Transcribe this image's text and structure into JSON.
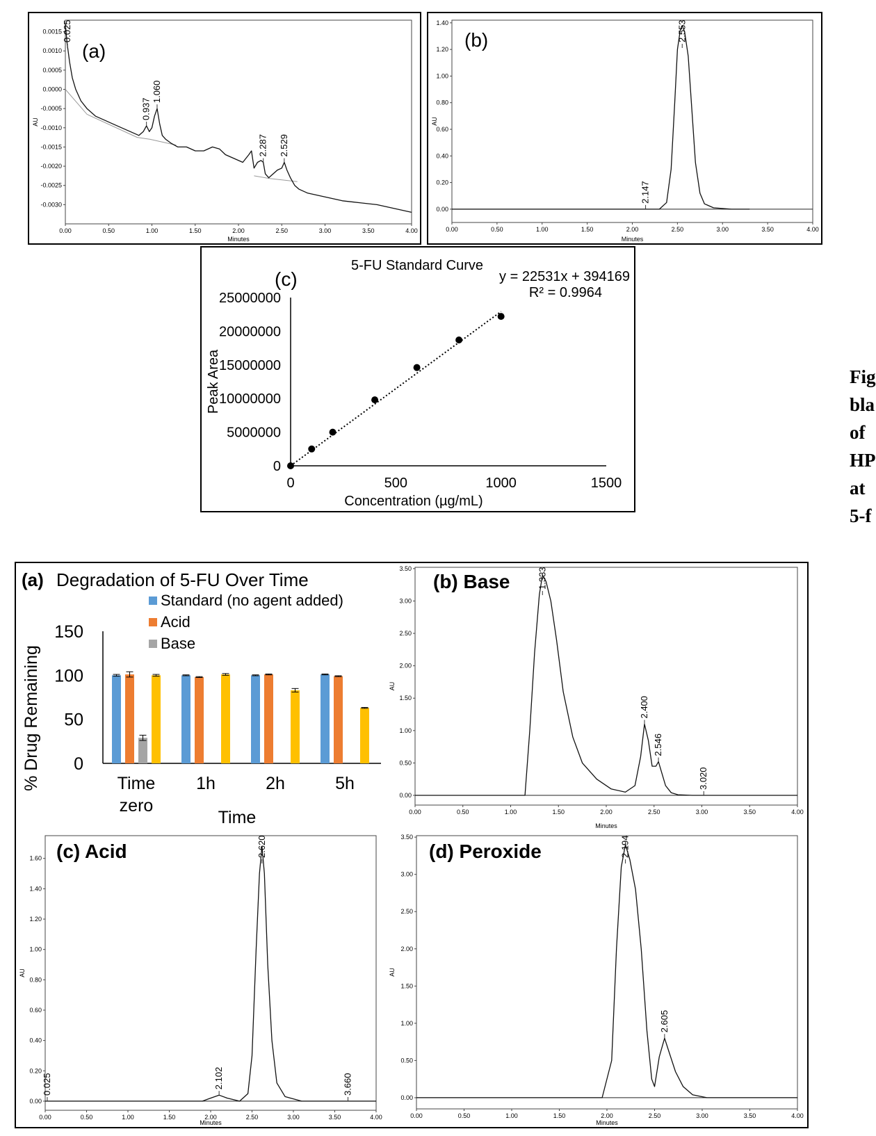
{
  "side_text": [
    "Fig",
    "bla",
    "of",
    "HP",
    "at",
    "5-f"
  ],
  "chart_data": [
    {
      "id": "top_a",
      "type": "line",
      "label": "(a)",
      "ylabel": "AU",
      "xlabel": "Minutes",
      "xlim": [
        0,
        4.0
      ],
      "ylim": [
        -0.0035,
        0.0018
      ],
      "x_ticks": [
        "0.00",
        "0.50",
        "1.00",
        "1.50",
        "2.00",
        "2.50",
        "3.00",
        "3.50",
        "4.00"
      ],
      "y_ticks": [
        {
          "v": 0.0015,
          "t": "0.0015"
        },
        {
          "v": 0.001,
          "t": "0.0010"
        },
        {
          "v": 0.0005,
          "t": "0.0005"
        },
        {
          "v": 0,
          "t": "0.0000"
        },
        {
          "v": -0.0005,
          "t": "-0.0005"
        },
        {
          "v": -0.001,
          "t": "-0.0010"
        },
        {
          "v": -0.0015,
          "t": "-0.0015"
        },
        {
          "v": -0.002,
          "t": "-0.0020"
        },
        {
          "v": -0.0025,
          "t": "-0.0025"
        },
        {
          "v": -0.003,
          "t": "-0.0030"
        }
      ],
      "series": [
        {
          "x": [
            0.0,
            0.02,
            0.05,
            0.08,
            0.12,
            0.18,
            0.25,
            0.35,
            0.45,
            0.55,
            0.65,
            0.75,
            0.85,
            0.9,
            0.937,
            0.97,
            1.0,
            1.03,
            1.06,
            1.09,
            1.12,
            1.16,
            1.22,
            1.3,
            1.4,
            1.5,
            1.6,
            1.7,
            1.78,
            1.85,
            1.95,
            2.05,
            2.12,
            2.15,
            2.18,
            2.22,
            2.26,
            2.287,
            2.31,
            2.35,
            2.4,
            2.45,
            2.5,
            2.529,
            2.56,
            2.6,
            2.65,
            2.7,
            2.8,
            3.0,
            3.2,
            3.4,
            3.6,
            3.8,
            4.0
          ],
          "y": [
            0.0017,
            0.0012,
            0.0007,
            0.0003,
            0.0,
            -0.0003,
            -0.0005,
            -0.0007,
            -0.0008,
            -0.0009,
            -0.001,
            -0.0011,
            -0.0012,
            -0.0011,
            -0.00095,
            -0.0011,
            -0.001,
            -0.0007,
            -0.0005,
            -0.0009,
            -0.0012,
            -0.0013,
            -0.0014,
            -0.0015,
            -0.0015,
            -0.0016,
            -0.0016,
            -0.0015,
            -0.00155,
            -0.0017,
            -0.0018,
            -0.0019,
            -0.0017,
            -0.0016,
            -0.00205,
            -0.0019,
            -0.00185,
            -0.0019,
            -0.0022,
            -0.0023,
            -0.0022,
            -0.0021,
            -0.00205,
            -0.0019,
            -0.0021,
            -0.0023,
            -0.0025,
            -0.0026,
            -0.0027,
            -0.0028,
            -0.0029,
            -0.00295,
            -0.003,
            -0.0031,
            -0.0032
          ]
        }
      ],
      "baselines": [
        {
          "x": [
            0.0,
            0.25,
            0.83,
            0.98,
            1.28
          ],
          "y": [
            0.0,
            -0.00065,
            -0.00125,
            -0.0013,
            -0.00145
          ]
        },
        {
          "x": [
            2.18,
            2.36,
            2.68
          ],
          "y": [
            -0.00225,
            -0.00232,
            -0.0024
          ]
        }
      ],
      "peaks": [
        {
          "x": 0.025,
          "label": "0.025"
        },
        {
          "x": 0.937,
          "label": "0.937"
        },
        {
          "x": 1.06,
          "label": "1.060"
        },
        {
          "x": 2.287,
          "label": "2.287"
        },
        {
          "x": 2.529,
          "label": "2.529"
        }
      ]
    },
    {
      "id": "top_b",
      "type": "line",
      "label": "(b)",
      "ylabel": "AU",
      "xlabel": "Minutes",
      "xlim": [
        0,
        4.0
      ],
      "ylim": [
        -0.1,
        1.42
      ],
      "x_ticks": [
        "0.00",
        "0.50",
        "1.00",
        "1.50",
        "2.00",
        "2.50",
        "3.00",
        "3.50",
        "4.00"
      ],
      "y_ticks": [
        {
          "v": 1.4,
          "t": "1.40"
        },
        {
          "v": 1.2,
          "t": "1.20"
        },
        {
          "v": 1.0,
          "t": "1.00"
        },
        {
          "v": 0.8,
          "t": "0.80"
        },
        {
          "v": 0.6,
          "t": "0.60"
        },
        {
          "v": 0.4,
          "t": "0.40"
        },
        {
          "v": 0.2,
          "t": "0.20"
        },
        {
          "v": 0,
          "t": "0.00"
        }
      ],
      "series": [
        {
          "x": [
            0.0,
            2.0,
            2.147,
            2.3,
            2.38,
            2.43,
            2.47,
            2.5,
            2.53,
            2.553,
            2.58,
            2.62,
            2.66,
            2.7,
            2.75,
            2.8,
            2.9,
            3.1,
            3.3
          ],
          "y": [
            0.0,
            0.0,
            0.0,
            0.0,
            0.05,
            0.3,
            0.8,
            1.2,
            1.34,
            1.38,
            1.33,
            1.15,
            0.75,
            0.35,
            0.12,
            0.04,
            0.01,
            0.0,
            0.0
          ]
        }
      ],
      "peaks": [
        {
          "x": 2.147,
          "label": "2.147"
        },
        {
          "x": 2.553,
          "label": "2.553"
        }
      ]
    },
    {
      "id": "top_c",
      "type": "scatter",
      "label": "(c)",
      "title": "5-FU Standard Curve",
      "xlabel": "Concentration (µg/mL)",
      "ylabel": "Peak Area",
      "equation": "y = 22531x + 394169",
      "r2": "R² = 0.9964",
      "xlim": [
        0,
        1500
      ],
      "ylim": [
        0,
        25000000
      ],
      "x_ticks": [
        {
          "v": 0,
          "t": "0"
        },
        {
          "v": 500,
          "t": "500"
        },
        {
          "v": 1000,
          "t": "1000"
        },
        {
          "v": 1500,
          "t": "1500"
        }
      ],
      "y_ticks": [
        {
          "v": 0,
          "t": "0"
        },
        {
          "v": 5000000,
          "t": "5000000"
        },
        {
          "v": 10000000,
          "t": "10000000"
        },
        {
          "v": 15000000,
          "t": "15000000"
        },
        {
          "v": 20000000,
          "t": "20000000"
        },
        {
          "v": 25000000,
          "t": "25000000"
        }
      ],
      "x": [
        0,
        100,
        200,
        400,
        600,
        800,
        1000
      ],
      "y": [
        0,
        2500000,
        5000000,
        9800000,
        14600000,
        18700000,
        22200000
      ],
      "trendline": {
        "slope": 22531,
        "intercept": 394169
      }
    },
    {
      "id": "bottom_a",
      "type": "bar",
      "label": "(a)",
      "title": "Degradation of 5-FU Over Time",
      "xlabel": "Time",
      "ylabel": "% Drug Remaining",
      "ylim": [
        0,
        150
      ],
      "y_ticks": [
        {
          "v": 0,
          "t": "0"
        },
        {
          "v": 50,
          "t": "50"
        },
        {
          "v": 100,
          "t": "100"
        },
        {
          "v": 150,
          "t": "150"
        }
      ],
      "categories": [
        [
          "Time",
          "zero"
        ],
        [
          "1h"
        ],
        [
          "2h"
        ],
        [
          "5h"
        ]
      ],
      "legend": [
        {
          "name": "Standard (no agent added)",
          "color": "#5b9bd5"
        },
        {
          "name": "Acid",
          "color": "#ed7d31"
        },
        {
          "name": "Base",
          "color": "#a5a5a5"
        }
      ],
      "series": [
        {
          "name": "Standard (no agent added)",
          "color": "#5b9bd5",
          "values": [
            100,
            100,
            100,
            101
          ],
          "errors": [
            1,
            0.5,
            0.5,
            0.5
          ]
        },
        {
          "name": "Acid",
          "color": "#ed7d31",
          "values": [
            101,
            98,
            101,
            99
          ],
          "errors": [
            3,
            0.5,
            0.5,
            0.5
          ]
        },
        {
          "name": "Base",
          "color": "#a5a5a5",
          "values": [
            29,
            null,
            null,
            null
          ],
          "errors": [
            3,
            null,
            null,
            null
          ]
        },
        {
          "color": "#ffc000",
          "values": [
            100,
            101,
            83,
            63
          ],
          "errors": [
            1,
            1,
            2,
            0.5
          ]
        }
      ]
    },
    {
      "id": "bottom_b",
      "type": "line",
      "label": "(b) Base",
      "ylabel": "AU",
      "xlabel": "Minutes",
      "xlim": [
        0,
        4.0
      ],
      "ylim": [
        -0.15,
        3.52
      ],
      "x_ticks": [
        "0.00",
        "0.50",
        "1.00",
        "1.50",
        "2.00",
        "2.50",
        "3.00",
        "3.50",
        "4.00"
      ],
      "y_ticks": [
        {
          "v": 3.5,
          "t": "3.50"
        },
        {
          "v": 3.0,
          "t": "3.00"
        },
        {
          "v": 2.5,
          "t": "2.50"
        },
        {
          "v": 2.0,
          "t": "2.00"
        },
        {
          "v": 1.5,
          "t": "1.50"
        },
        {
          "v": 1.0,
          "t": "1.00"
        },
        {
          "v": 0.5,
          "t": "0.50"
        },
        {
          "v": 0,
          "t": "0.00"
        }
      ],
      "series": [
        {
          "x": [
            0.0,
            1.0,
            1.15,
            1.2,
            1.25,
            1.3,
            1.333,
            1.37,
            1.42,
            1.48,
            1.55,
            1.65,
            1.75,
            1.9,
            2.05,
            2.2,
            2.3,
            2.36,
            2.4,
            2.44,
            2.48,
            2.52,
            2.546,
            2.58,
            2.62,
            2.68,
            2.75,
            2.9,
            3.02,
            3.1,
            4.0
          ],
          "y": [
            0.0,
            0.0,
            0.0,
            1.0,
            2.2,
            3.1,
            3.4,
            3.3,
            3.0,
            2.4,
            1.6,
            0.9,
            0.5,
            0.25,
            0.1,
            0.05,
            0.15,
            0.6,
            1.1,
            0.85,
            0.45,
            0.45,
            0.52,
            0.35,
            0.15,
            0.04,
            0.01,
            0.0,
            0.0,
            0.0,
            0.0
          ]
        }
      ],
      "peaks": [
        {
          "x": 1.333,
          "label": "1.333"
        },
        {
          "x": 2.4,
          "label": "2.400"
        },
        {
          "x": 2.546,
          "label": "2.546"
        },
        {
          "x": 3.02,
          "label": "3.020"
        }
      ]
    },
    {
      "id": "bottom_c",
      "type": "line",
      "label": "(c) Acid",
      "ylabel": "AU",
      "xlabel": "Minutes",
      "xlim": [
        0,
        4.0
      ],
      "ylim": [
        -0.06,
        1.75
      ],
      "x_ticks": [
        "0.00",
        "0.50",
        "1.00",
        "1.50",
        "2.00",
        "2.50",
        "3.00",
        "3.50",
        "4.00"
      ],
      "y_ticks": [
        {
          "v": 1.6,
          "t": "1.60"
        },
        {
          "v": 1.4,
          "t": "1.40"
        },
        {
          "v": 1.2,
          "t": "1.20"
        },
        {
          "v": 1.0,
          "t": "1.00"
        },
        {
          "v": 0.8,
          "t": "0.80"
        },
        {
          "v": 0.6,
          "t": "0.60"
        },
        {
          "v": 0.4,
          "t": "0.40"
        },
        {
          "v": 0.2,
          "t": "0.20"
        },
        {
          "v": 0,
          "t": "0.00"
        }
      ],
      "series": [
        {
          "x": [
            0.0,
            1.9,
            2.0,
            2.102,
            2.2,
            2.35,
            2.45,
            2.5,
            2.55,
            2.59,
            2.62,
            2.65,
            2.69,
            2.74,
            2.8,
            2.9,
            3.1,
            3.66,
            4.0
          ],
          "y": [
            0.0,
            0.0,
            0.02,
            0.04,
            0.02,
            0.0,
            0.05,
            0.3,
            1.0,
            1.5,
            1.68,
            1.5,
            0.9,
            0.4,
            0.12,
            0.03,
            0.0,
            0.0,
            0.0
          ]
        }
      ],
      "peaks": [
        {
          "x": 0.025,
          "label": "0.025"
        },
        {
          "x": 2.102,
          "label": "2.102"
        },
        {
          "x": 2.62,
          "label": "2.620"
        },
        {
          "x": 3.66,
          "label": "3.660"
        }
      ]
    },
    {
      "id": "bottom_d",
      "type": "line",
      "label": "(d) Peroxide",
      "ylabel": "AU",
      "xlabel": "Minutes",
      "xlim": [
        0,
        4.0
      ],
      "ylim": [
        -0.15,
        3.52
      ],
      "x_ticks": [
        "0.00",
        "0.50",
        "1.00",
        "1.50",
        "2.00",
        "2.50",
        "3.00",
        "3.50",
        "4.00"
      ],
      "y_ticks": [
        {
          "v": 3.5,
          "t": "3.50"
        },
        {
          "v": 3.0,
          "t": "3.00"
        },
        {
          "v": 2.5,
          "t": "2.50"
        },
        {
          "v": 2.0,
          "t": "2.00"
        },
        {
          "v": 1.5,
          "t": "1.50"
        },
        {
          "v": 1.0,
          "t": "1.00"
        },
        {
          "v": 0.5,
          "t": "0.50"
        },
        {
          "v": 0,
          "t": "0.00"
        }
      ],
      "series": [
        {
          "x": [
            0.0,
            1.95,
            2.05,
            2.1,
            2.15,
            2.194,
            2.24,
            2.3,
            2.36,
            2.42,
            2.47,
            2.5,
            2.55,
            2.605,
            2.65,
            2.72,
            2.8,
            2.9,
            3.05,
            4.0
          ],
          "y": [
            0.0,
            0.0,
            0.5,
            2.0,
            3.1,
            3.4,
            3.2,
            2.8,
            2.0,
            0.9,
            0.25,
            0.15,
            0.55,
            0.8,
            0.62,
            0.35,
            0.15,
            0.04,
            0.0,
            0.0
          ]
        }
      ],
      "peaks": [
        {
          "x": 2.194,
          "label": "2.194"
        },
        {
          "x": 2.605,
          "label": "2.605"
        }
      ]
    }
  ]
}
